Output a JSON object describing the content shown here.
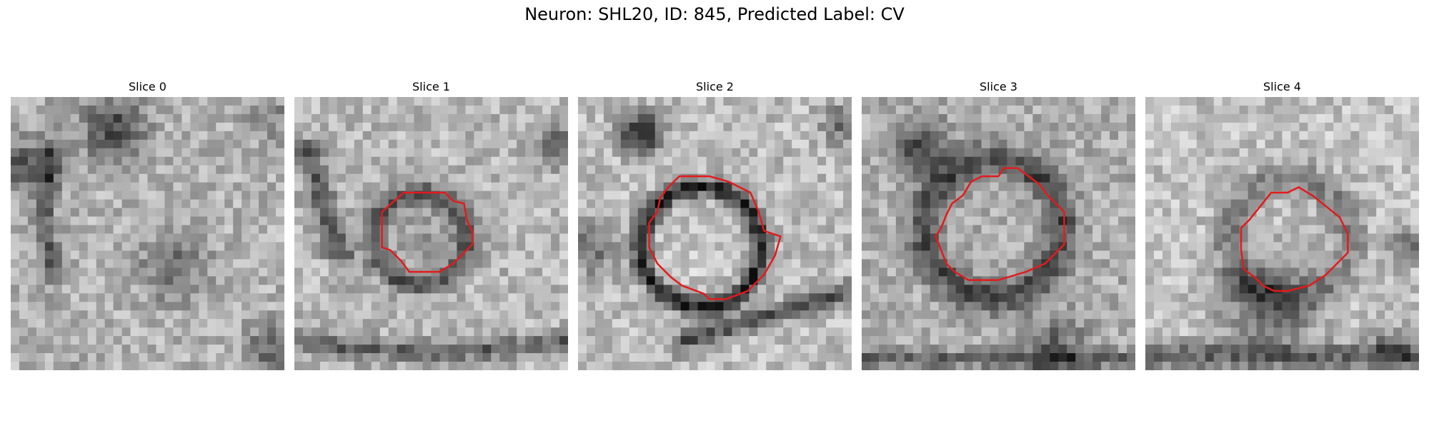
{
  "figure": {
    "title": "Neuron: SHL20, ID: 845, Predicted Label: CV"
  },
  "panels": [
    {
      "title": "Slice 0"
    },
    {
      "title": "Slice 1"
    },
    {
      "title": "Slice 2"
    },
    {
      "title": "Slice 3"
    },
    {
      "title": "Slice 4"
    }
  ],
  "colors": {
    "contour": "#e41a1c",
    "background": "#ffffff"
  }
}
